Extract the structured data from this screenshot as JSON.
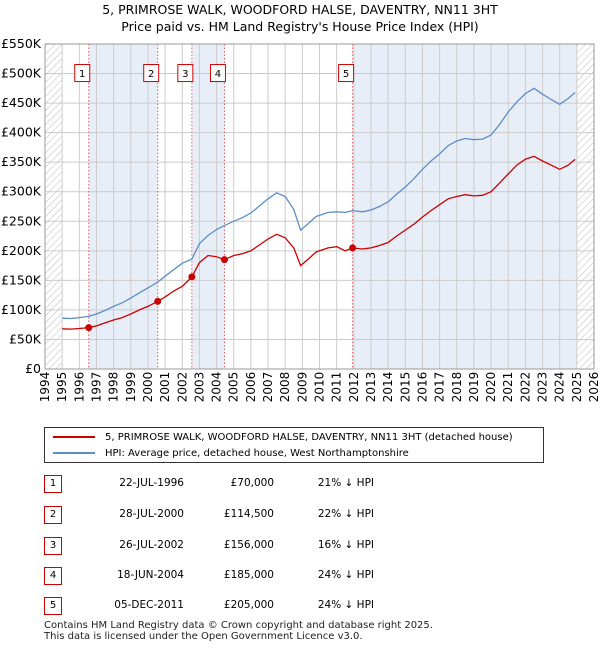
{
  "title_line1": "5, PRIMROSE WALK, WOODFORD HALSE, DAVENTRY, NN11 3HT",
  "title_line2": "Price paid vs. HM Land Registry's House Price Index (HPI)",
  "colors": {
    "property": "#cc0000",
    "hpi": "#5b8ec9",
    "band": "#e8eef8",
    "grid": "#cccccc",
    "hatch": "#bbbbbb"
  },
  "chart_data": {
    "type": "line",
    "xlim": [
      1994,
      2026
    ],
    "ylim": [
      0,
      550000
    ],
    "x_ticks": [
      1994,
      1995,
      1996,
      1997,
      1998,
      1999,
      2000,
      2001,
      2002,
      2003,
      2004,
      2005,
      2006,
      2007,
      2008,
      2009,
      2010,
      2011,
      2012,
      2013,
      2014,
      2015,
      2016,
      2017,
      2018,
      2019,
      2020,
      2021,
      2022,
      2023,
      2024,
      2025,
      2026
    ],
    "y_ticks": [
      {
        "value": 0,
        "label": "£0"
      },
      {
        "value": 50000,
        "label": "£50K"
      },
      {
        "value": 100000,
        "label": "£100K"
      },
      {
        "value": 150000,
        "label": "£150K"
      },
      {
        "value": 200000,
        "label": "£200K"
      },
      {
        "value": 250000,
        "label": "£250K"
      },
      {
        "value": 300000,
        "label": "£300K"
      },
      {
        "value": 350000,
        "label": "£350K"
      },
      {
        "value": 400000,
        "label": "£400K"
      },
      {
        "value": 450000,
        "label": "£450K"
      },
      {
        "value": 500000,
        "label": "£500K"
      },
      {
        "value": 550000,
        "label": "£550K"
      }
    ],
    "shaded_bands": [
      [
        1996.55,
        2000.57
      ],
      [
        2002.56,
        2004.46
      ],
      [
        2011.93,
        2025.0
      ]
    ],
    "hatched_ranges": [
      [
        1994,
        1995
      ],
      [
        2025,
        2026
      ]
    ],
    "series": [
      {
        "name": "5, PRIMROSE WALK, WOODFORD HALSE, DAVENTRY, NN11 3HT (detached house)",
        "color": "#cc0000",
        "points": [
          [
            1995,
            68000
          ],
          [
            1995.5,
            67500
          ],
          [
            1996,
            68500
          ],
          [
            1996.55,
            70000
          ],
          [
            1997,
            73000
          ],
          [
            1997.5,
            78000
          ],
          [
            1998,
            83000
          ],
          [
            1998.5,
            87000
          ],
          [
            1999,
            93000
          ],
          [
            1999.5,
            100000
          ],
          [
            2000,
            106000
          ],
          [
            2000.57,
            114500
          ],
          [
            2001,
            122000
          ],
          [
            2001.5,
            132000
          ],
          [
            2002,
            140000
          ],
          [
            2002.56,
            156000
          ],
          [
            2003,
            180000
          ],
          [
            2003.5,
            192000
          ],
          [
            2004,
            190000
          ],
          [
            2004.46,
            185000
          ],
          [
            2005,
            192000
          ],
          [
            2005.5,
            195000
          ],
          [
            2006,
            200000
          ],
          [
            2006.5,
            210000
          ],
          [
            2007,
            220000
          ],
          [
            2007.5,
            228000
          ],
          [
            2008,
            222000
          ],
          [
            2008.5,
            205000
          ],
          [
            2008.9,
            175000
          ],
          [
            2009.3,
            185000
          ],
          [
            2009.8,
            198000
          ],
          [
            2010.5,
            205000
          ],
          [
            2011,
            207000
          ],
          [
            2011.5,
            200000
          ],
          [
            2011.93,
            205000
          ],
          [
            2012.5,
            203000
          ],
          [
            2013,
            205000
          ],
          [
            2013.5,
            209000
          ],
          [
            2014,
            214000
          ],
          [
            2014.5,
            225000
          ],
          [
            2015,
            235000
          ],
          [
            2015.5,
            245000
          ],
          [
            2016,
            257000
          ],
          [
            2016.5,
            268000
          ],
          [
            2017,
            278000
          ],
          [
            2017.5,
            288000
          ],
          [
            2018,
            292000
          ],
          [
            2018.5,
            295000
          ],
          [
            2019,
            293000
          ],
          [
            2019.5,
            294000
          ],
          [
            2020,
            300000
          ],
          [
            2020.5,
            315000
          ],
          [
            2021,
            330000
          ],
          [
            2021.5,
            345000
          ],
          [
            2022,
            355000
          ],
          [
            2022.5,
            360000
          ],
          [
            2023,
            352000
          ],
          [
            2023.5,
            345000
          ],
          [
            2024,
            338000
          ],
          [
            2024.5,
            345000
          ],
          [
            2024.9,
            355000
          ]
        ]
      },
      {
        "name": "HPI: Average price, detached house, West Northamptonshire",
        "color": "#5b8ec9",
        "points": [
          [
            1995,
            86000
          ],
          [
            1995.5,
            85500
          ],
          [
            1996,
            87000
          ],
          [
            1996.55,
            89000
          ],
          [
            1997,
            93000
          ],
          [
            1997.5,
            99000
          ],
          [
            1998,
            106000
          ],
          [
            1998.5,
            112000
          ],
          [
            1999,
            120000
          ],
          [
            1999.5,
            129000
          ],
          [
            2000,
            137000
          ],
          [
            2000.57,
            147000
          ],
          [
            2001,
            157000
          ],
          [
            2001.5,
            168000
          ],
          [
            2002,
            179000
          ],
          [
            2002.56,
            186000
          ],
          [
            2003,
            212000
          ],
          [
            2003.5,
            226000
          ],
          [
            2004,
            236000
          ],
          [
            2004.46,
            243000
          ],
          [
            2005,
            250000
          ],
          [
            2005.5,
            256000
          ],
          [
            2006,
            264000
          ],
          [
            2006.5,
            276000
          ],
          [
            2007,
            288000
          ],
          [
            2007.5,
            298000
          ],
          [
            2008,
            292000
          ],
          [
            2008.5,
            270000
          ],
          [
            2008.9,
            235000
          ],
          [
            2009.3,
            245000
          ],
          [
            2009.8,
            258000
          ],
          [
            2010.5,
            265000
          ],
          [
            2011,
            266000
          ],
          [
            2011.5,
            265000
          ],
          [
            2011.93,
            268000
          ],
          [
            2012.5,
            266000
          ],
          [
            2013,
            269000
          ],
          [
            2013.5,
            275000
          ],
          [
            2014,
            283000
          ],
          [
            2014.5,
            296000
          ],
          [
            2015,
            308000
          ],
          [
            2015.5,
            322000
          ],
          [
            2016,
            338000
          ],
          [
            2016.5,
            352000
          ],
          [
            2017,
            364000
          ],
          [
            2017.5,
            378000
          ],
          [
            2018,
            386000
          ],
          [
            2018.5,
            390000
          ],
          [
            2019,
            388000
          ],
          [
            2019.5,
            389000
          ],
          [
            2020,
            396000
          ],
          [
            2020.5,
            414000
          ],
          [
            2021,
            435000
          ],
          [
            2021.5,
            452000
          ],
          [
            2022,
            466000
          ],
          [
            2022.5,
            475000
          ],
          [
            2023,
            465000
          ],
          [
            2023.5,
            456000
          ],
          [
            2024,
            448000
          ],
          [
            2024.5,
            458000
          ],
          [
            2024.9,
            468000
          ]
        ]
      }
    ],
    "sales": [
      {
        "label": "1",
        "x": 1996.55,
        "y": 70000
      },
      {
        "label": "2",
        "x": 2000.57,
        "y": 114500
      },
      {
        "label": "3",
        "x": 2002.56,
        "y": 156000
      },
      {
        "label": "4",
        "x": 2004.46,
        "y": 185000
      },
      {
        "label": "5",
        "x": 2011.93,
        "y": 205000
      }
    ],
    "marker_label_y": 500000
  },
  "legend": {
    "property_label": "5, PRIMROSE WALK, WOODFORD HALSE, DAVENTRY, NN11 3HT (detached house)",
    "hpi_label": "HPI: Average price, detached house, West Northamptonshire"
  },
  "transactions": [
    {
      "num": "1",
      "date": "22-JUL-1996",
      "price": "£70,000",
      "hpi": "21% ↓ HPI"
    },
    {
      "num": "2",
      "date": "28-JUL-2000",
      "price": "£114,500",
      "hpi": "22% ↓ HPI"
    },
    {
      "num": "3",
      "date": "26-JUL-2002",
      "price": "£156,000",
      "hpi": "16% ↓ HPI"
    },
    {
      "num": "4",
      "date": "18-JUN-2004",
      "price": "£185,000",
      "hpi": "24% ↓ HPI"
    },
    {
      "num": "5",
      "date": "05-DEC-2011",
      "price": "£205,000",
      "hpi": "24% ↓ HPI"
    }
  ],
  "footer_line1": "Contains HM Land Registry data © Crown copyright and database right 2025.",
  "footer_line2": "This data is licensed under the Open Government Licence v3.0."
}
